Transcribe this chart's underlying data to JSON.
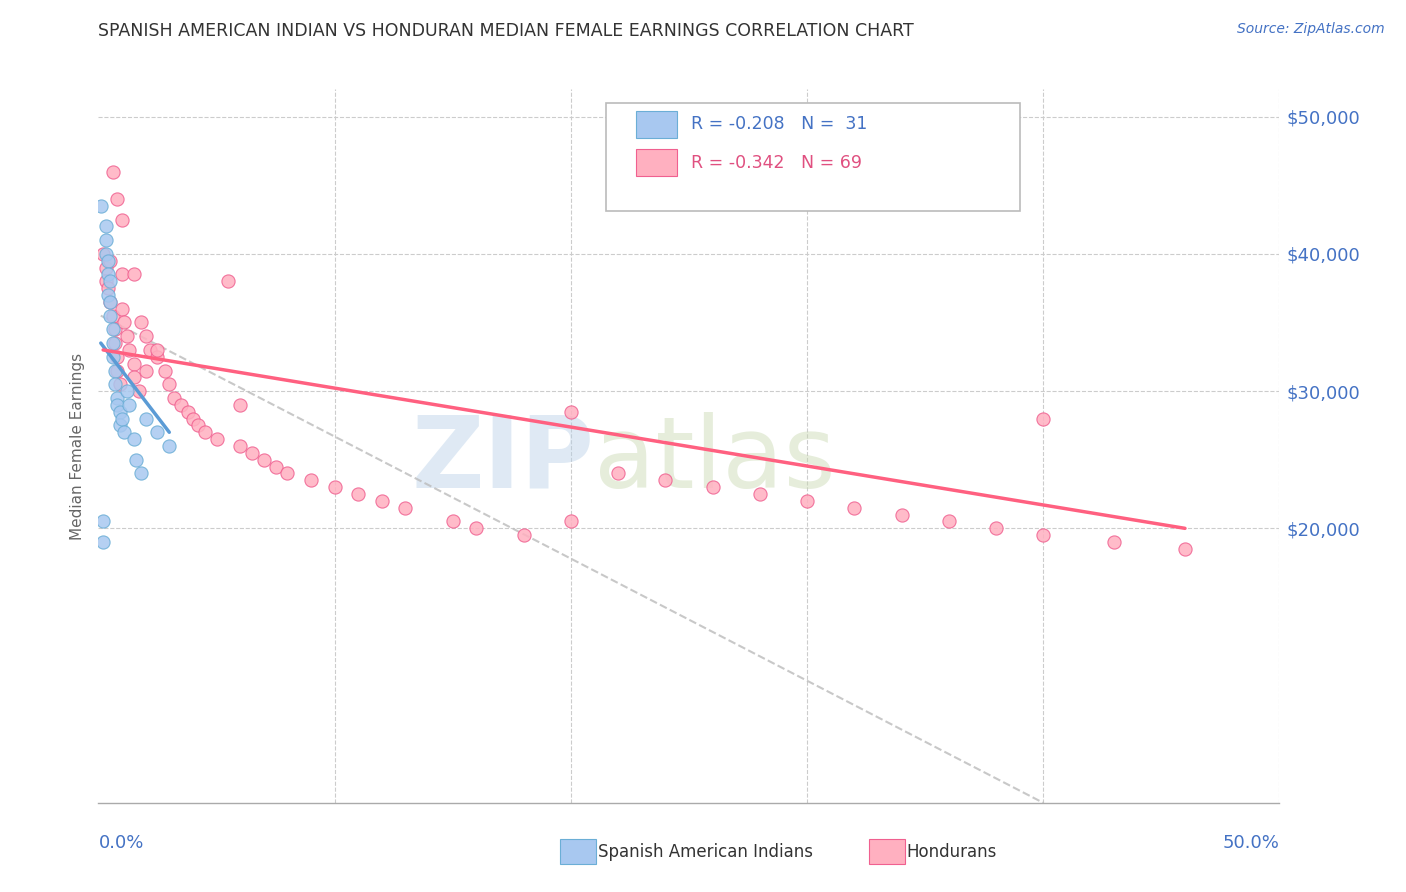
{
  "title": "SPANISH AMERICAN INDIAN VS HONDURAN MEDIAN FEMALE EARNINGS CORRELATION CHART",
  "source": "Source: ZipAtlas.com",
  "ylabel": "Median Female Earnings",
  "y_ticks": [
    20000,
    30000,
    40000,
    50000
  ],
  "y_tick_labels": [
    "$20,000",
    "$30,000",
    "$40,000",
    "$50,000"
  ],
  "watermark_zip": "ZIP",
  "watermark_atlas": "atlas",
  "color_blue_fill": "#A8C8F0",
  "color_blue_edge": "#6BAED6",
  "color_pink_fill": "#FFB0C0",
  "color_pink_edge": "#F06090",
  "color_blue_line": "#5B9BD5",
  "color_pink_line": "#FF6080",
  "color_dashed": "#BBBBBB",
  "color_axis_label": "#4472C4",
  "sai_x": [
    0.001,
    0.002,
    0.002,
    0.003,
    0.003,
    0.003,
    0.004,
    0.004,
    0.004,
    0.005,
    0.005,
    0.005,
    0.006,
    0.006,
    0.006,
    0.007,
    0.007,
    0.008,
    0.008,
    0.009,
    0.009,
    0.01,
    0.011,
    0.012,
    0.013,
    0.015,
    0.016,
    0.018,
    0.02,
    0.025,
    0.03
  ],
  "sai_y": [
    43500,
    20500,
    19000,
    42000,
    41000,
    40000,
    39500,
    38500,
    37000,
    36500,
    35500,
    38000,
    34500,
    33500,
    32500,
    31500,
    30500,
    29500,
    29000,
    28500,
    27500,
    28000,
    27000,
    30000,
    29000,
    26500,
    25000,
    24000,
    28000,
    27000,
    26000
  ],
  "hon_x": [
    0.002,
    0.003,
    0.003,
    0.004,
    0.005,
    0.005,
    0.006,
    0.007,
    0.007,
    0.008,
    0.008,
    0.009,
    0.01,
    0.01,
    0.011,
    0.012,
    0.013,
    0.015,
    0.015,
    0.017,
    0.018,
    0.02,
    0.022,
    0.025,
    0.028,
    0.03,
    0.032,
    0.035,
    0.038,
    0.04,
    0.042,
    0.045,
    0.05,
    0.055,
    0.06,
    0.065,
    0.07,
    0.075,
    0.08,
    0.09,
    0.1,
    0.11,
    0.12,
    0.13,
    0.15,
    0.16,
    0.18,
    0.2,
    0.22,
    0.24,
    0.26,
    0.28,
    0.3,
    0.32,
    0.34,
    0.36,
    0.38,
    0.4,
    0.43,
    0.46,
    0.006,
    0.008,
    0.01,
    0.015,
    0.02,
    0.025,
    0.06,
    0.2,
    0.4
  ],
  "hon_y": [
    40000,
    39000,
    38000,
    37500,
    36500,
    39500,
    35500,
    34500,
    33500,
    32500,
    31500,
    30500,
    38500,
    36000,
    35000,
    34000,
    33000,
    32000,
    31000,
    30000,
    35000,
    34000,
    33000,
    32500,
    31500,
    30500,
    29500,
    29000,
    28500,
    28000,
    27500,
    27000,
    26500,
    38000,
    26000,
    25500,
    25000,
    24500,
    24000,
    23500,
    23000,
    22500,
    22000,
    21500,
    20500,
    20000,
    19500,
    20500,
    24000,
    23500,
    23000,
    22500,
    22000,
    21500,
    21000,
    20500,
    20000,
    19500,
    19000,
    18500,
    46000,
    44000,
    42500,
    38500,
    31500,
    33000,
    29000,
    28500,
    28000
  ],
  "sai_line_x": [
    0.001,
    0.03
  ],
  "sai_line_y": [
    33500,
    27000
  ],
  "hon_line_x": [
    0.002,
    0.46
  ],
  "hon_line_y": [
    33000,
    20000
  ],
  "dash_line_x": [
    0.001,
    0.4
  ],
  "dash_line_y": [
    35500,
    0
  ],
  "xmin": 0.0,
  "xmax": 0.5,
  "ymin": 0,
  "ymax": 52000,
  "figwidth": 14.06,
  "figheight": 8.92
}
